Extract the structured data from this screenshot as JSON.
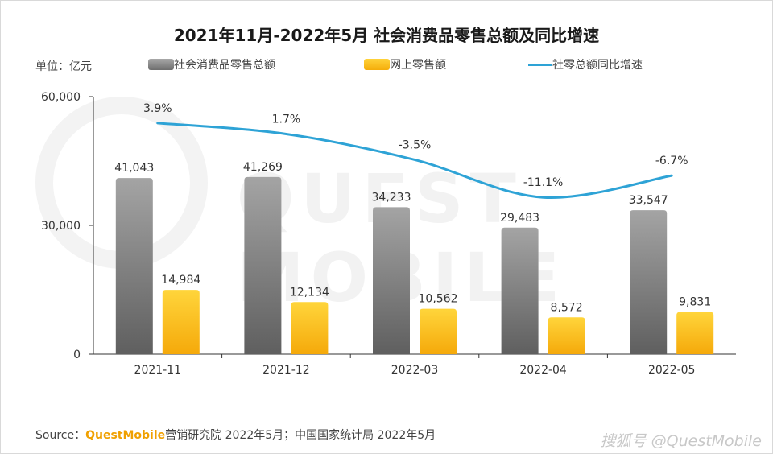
{
  "watermark": "QUEST MOBILE",
  "unit_label": "单位：亿元",
  "source": {
    "prefix": "Source：",
    "brand": "QuestMobile",
    "text": "营销研究院 2022年5月；中国国家统计局 2022年5月"
  },
  "credit": "搜狐号 @QuestMobile",
  "colors": {
    "total_bar": "#8a8a8a",
    "online_bar": "#fbc21a",
    "growth_line": "#2ea3d6",
    "axis": "#333333",
    "text": "#333333"
  },
  "chart_data": {
    "type": "bar",
    "title": "2021年11月-2022年5月 社会消费品零售总额及同比增速",
    "categories": [
      "2021-11",
      "2021-12",
      "2022-03",
      "2022-04",
      "2022-05"
    ],
    "series": [
      {
        "name": "社会消费品零售总额",
        "type": "bar",
        "values": [
          41043,
          41269,
          34233,
          29483,
          33547
        ],
        "labels": [
          "41,043",
          "41,269",
          "34,233",
          "29,483",
          "33,547"
        ]
      },
      {
        "name": "网上零售额",
        "type": "bar",
        "values": [
          14984,
          12134,
          10562,
          8572,
          9831
        ],
        "labels": [
          "14,984",
          "12,134",
          "10,562",
          "8,572",
          "9,831"
        ]
      },
      {
        "name": "社零总额同比增速",
        "type": "line",
        "values": [
          3.9,
          1.7,
          -3.5,
          -11.1,
          -6.7
        ],
        "labels": [
          "3.9%",
          "1.7%",
          "-3.5%",
          "-11.1%",
          "-6.7%"
        ]
      }
    ],
    "y_ticks": [
      "60,000",
      "30,000",
      "0"
    ],
    "ylim": [
      0,
      60000
    ],
    "legend_position": "top",
    "grid": false
  }
}
